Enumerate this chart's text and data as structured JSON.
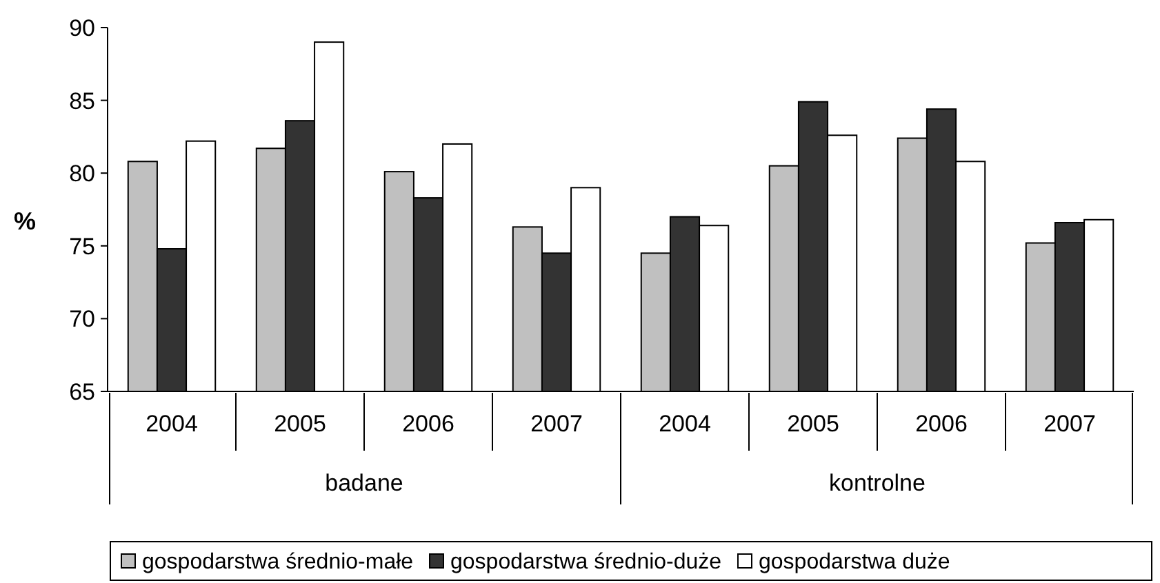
{
  "chart_data": {
    "type": "bar",
    "ylabel": "%",
    "categories": [
      "2004",
      "2005",
      "2006",
      "2007",
      "2004",
      "2005",
      "2006",
      "2007"
    ],
    "annotations": [
      "badane",
      "kontrolne"
    ],
    "series": [
      {
        "name": "gospodarstwa średnio-małe",
        "color": "#c0c0c0",
        "values": [
          80.8,
          81.7,
          80.1,
          76.3,
          74.5,
          80.5,
          82.4,
          75.2
        ]
      },
      {
        "name": "gospodarstwa średnio-duże",
        "color": "#333333",
        "values": [
          74.8,
          83.6,
          78.3,
          74.5,
          77.0,
          84.9,
          84.4,
          76.6
        ]
      },
      {
        "name": "gospodarstwa duże",
        "color": "#ffffff",
        "values": [
          82.2,
          89.0,
          82.0,
          79.0,
          76.4,
          82.6,
          80.8,
          76.8
        ]
      }
    ],
    "ylim": [
      65,
      90
    ],
    "yticks": [
      65,
      70,
      75,
      80,
      85,
      90
    ],
    "grid": false,
    "legend": "bottom"
  }
}
